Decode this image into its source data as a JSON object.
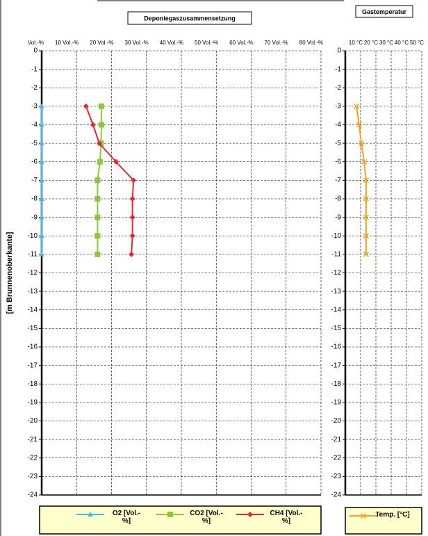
{
  "chart_data": [
    {
      "type": "line",
      "title": "Deponiegaszusammensetzung",
      "ylabel": "[m Brunnenoberkante]",
      "depth": [
        -3,
        -4,
        -5,
        -6,
        -7,
        -8,
        -9,
        -10,
        -11
      ],
      "series": [
        {
          "name": "O2 [Vol.-%]",
          "color": "#4db8e8",
          "marker": "triangle",
          "values": [
            0,
            0,
            0,
            0,
            0,
            0,
            0,
            0,
            0
          ]
        },
        {
          "name": "CO2 [Vol.-%]",
          "color": "#8dc63f",
          "marker": "square",
          "values": [
            17.1,
            17.1,
            17,
            16.7,
            16,
            16,
            16,
            16,
            16
          ]
        },
        {
          "name": "CH4 [Vol.-%]",
          "color": "#e8262b",
          "marker": "diamond",
          "values": [
            12.7,
            14.7,
            16.5,
            21.3,
            26.3,
            26,
            26,
            26,
            25.7
          ]
        }
      ],
      "xlim": [
        0,
        80
      ],
      "xticks": [
        {
          "value": 0,
          "label": "Vol.-%"
        },
        {
          "value": 10,
          "label": "10 Vol.-%"
        },
        {
          "value": 20,
          "label": "20 Vol.-%"
        },
        {
          "value": 30,
          "label": "30 Vol.-%"
        },
        {
          "value": 40,
          "label": "40 Vol.-%"
        },
        {
          "value": 50,
          "label": "50 Vol.-%"
        },
        {
          "value": 60,
          "label": "60 Vol.-%"
        },
        {
          "value": 70,
          "label": "70 Vol.-%"
        },
        {
          "value": 80,
          "label": "80 Vol.-%"
        }
      ],
      "ylim": [
        0,
        -24
      ],
      "yticks": [
        0,
        -1,
        -2,
        -3,
        -4,
        -5,
        -6,
        -7,
        -8,
        -9,
        -10,
        -11,
        -12,
        -13,
        -14,
        -15,
        -16,
        -17,
        -18,
        -19,
        -20,
        -21,
        -22,
        -23,
        -24
      ],
      "grid": true
    },
    {
      "type": "line",
      "title": "Gastemperatur",
      "depth": [
        -3,
        -4,
        -5,
        -6,
        -7,
        -8,
        -9,
        -10,
        -11
      ],
      "series": [
        {
          "name": "Temp. [°C]",
          "color": "#f7a21b",
          "marker": "x",
          "values": [
            7.3,
            9,
            10.5,
            12.3,
            13.6,
            13.6,
            13.6,
            13.6,
            13.6
          ]
        }
      ],
      "xlim": [
        0,
        50
      ],
      "xticks": [
        {
          "value": 10,
          "label": "10 °C"
        },
        {
          "value": 20,
          "label": "20 °C"
        },
        {
          "value": 30,
          "label": "30 °C"
        },
        {
          "value": 40,
          "label": "40 °C"
        },
        {
          "value": 50,
          "label": "50 °C"
        }
      ],
      "ylim": [
        0,
        -24
      ],
      "yticks": [
        0,
        -1,
        -2,
        -3,
        -4,
        -5,
        -6,
        -7,
        -8,
        -9,
        -10,
        -11,
        -12,
        -13,
        -14,
        -15,
        -16,
        -17,
        -18,
        -19,
        -20,
        -21,
        -22,
        -23,
        -24
      ],
      "grid": true
    }
  ]
}
